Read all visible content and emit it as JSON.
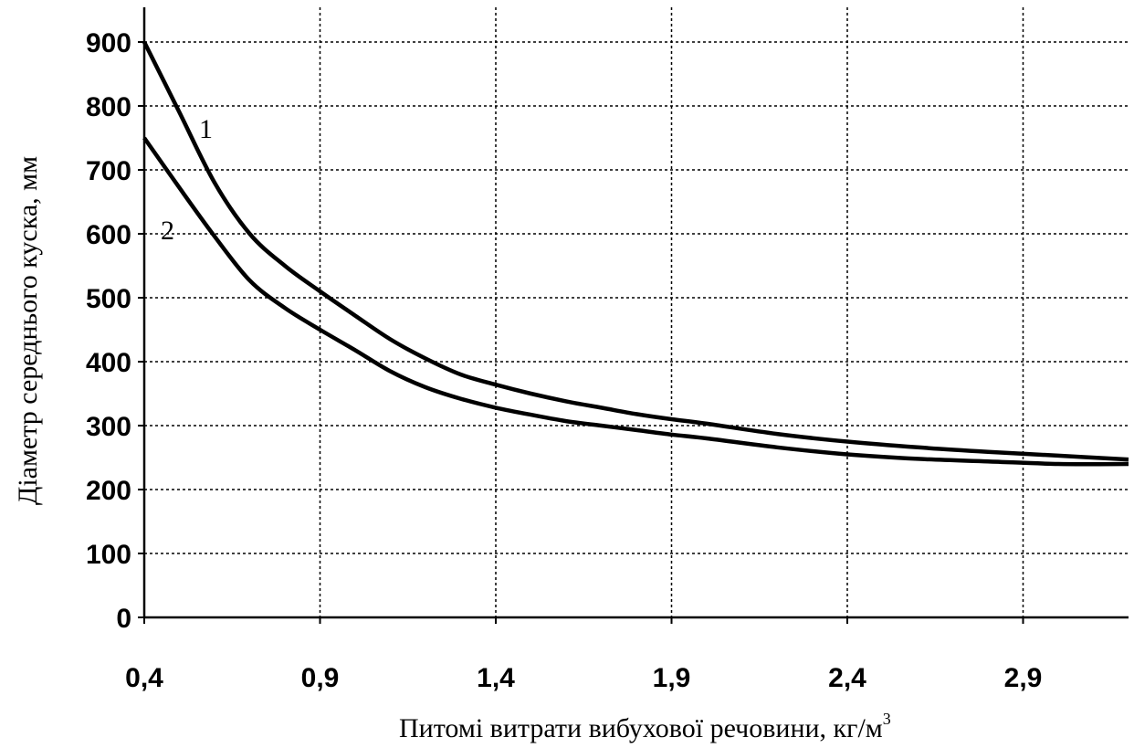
{
  "chart_data": {
    "type": "line",
    "title": "",
    "xlabel": "Питомі витрати вибухової речовини, кг/м",
    "xlabel_sup": "3",
    "ylabel": "Діаметр середнього куска, мм",
    "xlim": [
      0.4,
      3.2
    ],
    "ylim": [
      0,
      900
    ],
    "x_ticks": [
      0.4,
      0.9,
      1.4,
      1.9,
      2.4,
      2.9
    ],
    "x_tick_labels": [
      "0,4",
      "0,9",
      "1,4",
      "1,9",
      "2,4",
      "2,9"
    ],
    "y_ticks": [
      0,
      100,
      200,
      300,
      400,
      500,
      600,
      700,
      800,
      900
    ],
    "y_tick_labels": [
      "0",
      "100",
      "200",
      "300",
      "400",
      "500",
      "600",
      "700",
      "800",
      "900"
    ],
    "grid": true,
    "legend": "none",
    "series": [
      {
        "name": "1",
        "x": [
          0.4,
          0.5,
          0.6,
          0.7,
          0.8,
          0.9,
          1.0,
          1.1,
          1.2,
          1.3,
          1.4,
          1.5,
          1.6,
          1.7,
          1.8,
          1.9,
          2.0,
          2.2,
          2.4,
          2.6,
          2.8,
          3.0,
          3.2
        ],
        "y": [
          900,
          790,
          680,
          600,
          550,
          510,
          472,
          435,
          405,
          380,
          364,
          350,
          338,
          328,
          318,
          310,
          303,
          287,
          275,
          266,
          259,
          253,
          247
        ]
      },
      {
        "name": "2",
        "x": [
          0.4,
          0.5,
          0.6,
          0.7,
          0.8,
          0.9,
          1.0,
          1.1,
          1.2,
          1.3,
          1.4,
          1.5,
          1.6,
          1.7,
          1.8,
          1.9,
          2.0,
          2.2,
          2.4,
          2.6,
          2.8,
          3.0,
          3.2
        ],
        "y": [
          750,
          672,
          596,
          527,
          484,
          450,
          418,
          385,
          360,
          342,
          328,
          317,
          307,
          300,
          293,
          286,
          280,
          266,
          255,
          248,
          244,
          240,
          240
        ]
      }
    ]
  }
}
